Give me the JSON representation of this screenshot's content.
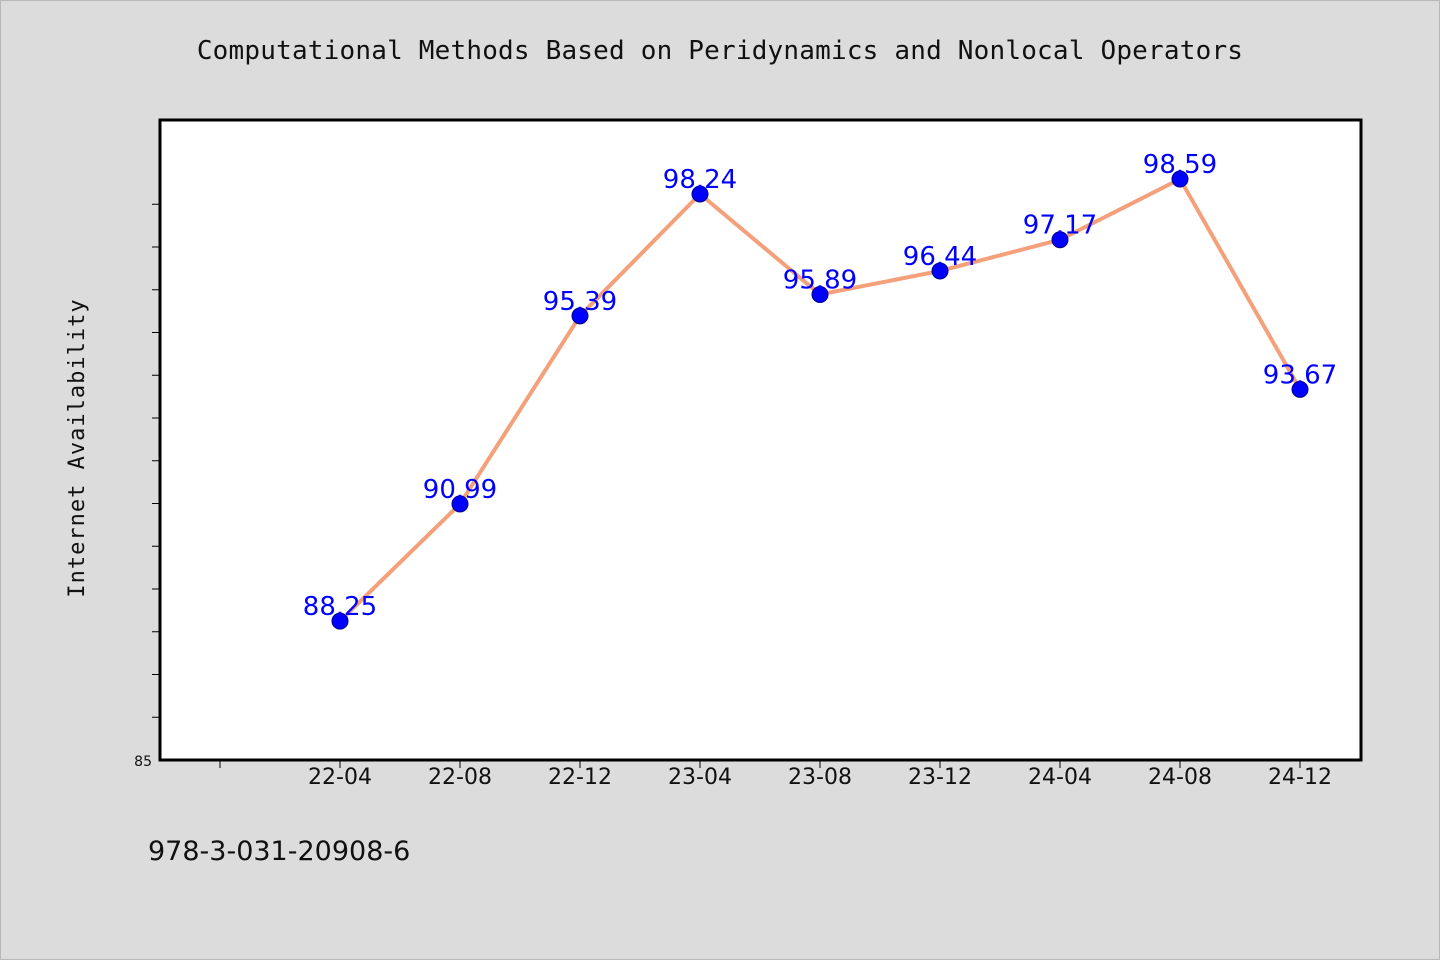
{
  "page": {
    "footer_text": "978-3-031-20908-6"
  },
  "chart_data": {
    "type": "line",
    "title": "Computational Methods Based on Peridynamics and Nonlocal Operators",
    "xlabel": "",
    "ylabel": "Internet Availability",
    "categories": [
      "22-04",
      "22-08",
      "22-12",
      "23-04",
      "23-08",
      "23-12",
      "24-04",
      "24-08",
      "24-12"
    ],
    "series": [
      {
        "values": [
          88.25,
          90.99,
          95.39,
          98.24,
          95.89,
          96.44,
          97.17,
          98.59,
          93.67
        ],
        "labels": [
          "88.25",
          "90.99",
          "95.39",
          "98.24",
          "95.89",
          "96.44",
          "97.17",
          "98.59",
          "93.67"
        ],
        "line_color": "#f4a07a",
        "marker_color": "#0000ff"
      }
    ],
    "ylim": [
      85,
      100
    ],
    "y_min_label": "85",
    "grid": false,
    "legend": "none",
    "colors": {
      "background": "#dcdcdc",
      "plot_background": "#ffffff",
      "line": "#f4a07a",
      "marker": "#0000ff",
      "data_label": "#0000ff"
    }
  }
}
